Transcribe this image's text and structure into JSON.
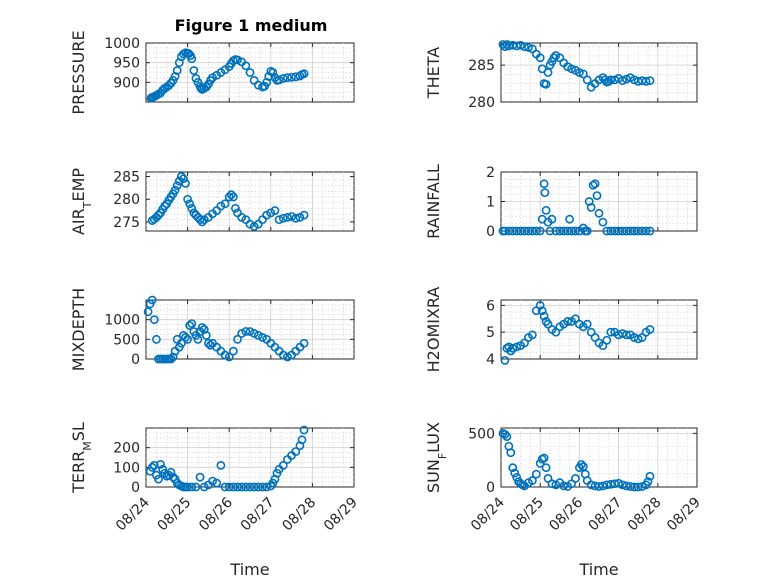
{
  "figure": {
    "title": "Figure 1 medium"
  },
  "chart_data": [
    {
      "type": "scatter",
      "id": "pressure",
      "ylabel": "PRESSURE",
      "ylim": [
        850,
        1000
      ],
      "yticks": [
        900,
        950,
        1000
      ],
      "xlabel": "",
      "xtick_labels": false,
      "marker_color": "#0072BD",
      "grid": true,
      "x": [
        0.12,
        0.15,
        0.18,
        0.22,
        0.25,
        0.3,
        0.35,
        0.4,
        0.45,
        0.5,
        0.55,
        0.6,
        0.65,
        0.7,
        0.75,
        0.8,
        0.85,
        0.9,
        0.95,
        1.0,
        1.03,
        1.07,
        1.1,
        1.15,
        1.2,
        1.25,
        1.3,
        1.32,
        1.35,
        1.4,
        1.45,
        1.5,
        1.55,
        1.6,
        1.7,
        1.8,
        1.9,
        2.0,
        2.05,
        2.1,
        2.15,
        2.2,
        2.3,
        2.4,
        2.5,
        2.6,
        2.7,
        2.8,
        2.85,
        2.9,
        2.95,
        3.0,
        3.05,
        3.1,
        3.15,
        3.2,
        3.3,
        3.4,
        3.5,
        3.6,
        3.7,
        3.75,
        3.8
      ],
      "y": [
        860,
        862,
        863,
        865,
        867,
        870,
        873,
        880,
        885,
        888,
        892,
        898,
        905,
        915,
        930,
        950,
        965,
        972,
        975,
        974,
        973,
        968,
        960,
        930,
        910,
        900,
        890,
        885,
        882,
        885,
        888,
        895,
        905,
        912,
        918,
        925,
        932,
        940,
        948,
        955,
        958,
        957,
        952,
        942,
        925,
        905,
        893,
        888,
        890,
        900,
        915,
        928,
        925,
        912,
        905,
        906,
        910,
        912,
        913,
        914,
        916,
        920,
        922
      ],
      "y_repeat": [],
      "x_repeat": []
    },
    {
      "type": "scatter",
      "id": "theta",
      "ylabel": "THETA",
      "ylim": [
        280,
        288
      ],
      "yticks": [
        280,
        285
      ],
      "xlabel": "",
      "xtick_labels": false,
      "marker_color": "#0072BD",
      "grid": true,
      "x": [
        0.05,
        0.1,
        0.15,
        0.2,
        0.3,
        0.4,
        0.5,
        0.6,
        0.7,
        0.8,
        0.9,
        1.0,
        1.05,
        1.1,
        1.15,
        1.2,
        1.25,
        1.3,
        1.35,
        1.4,
        1.5,
        1.6,
        1.7,
        1.8,
        1.9,
        2.0,
        2.1,
        2.2,
        2.3,
        2.4,
        2.5,
        2.6,
        2.65,
        2.7,
        2.75,
        2.8,
        2.9,
        3.0,
        3.1,
        3.2,
        3.3,
        3.4,
        3.5,
        3.6,
        3.7,
        3.8
      ],
      "y": [
        287.8,
        287.5,
        287.8,
        287.6,
        287.7,
        287.6,
        287.7,
        287.5,
        287.4,
        287.2,
        286.5,
        286.0,
        284.5,
        282.5,
        282.4,
        284.0,
        285.0,
        285.5,
        286.0,
        286.3,
        286.0,
        285.3,
        284.8,
        284.5,
        284.3,
        284.0,
        283.8,
        283.0,
        282.0,
        282.5,
        283.0,
        283.3,
        283.0,
        282.7,
        282.8,
        283.0,
        283.0,
        283.2,
        282.9,
        283.1,
        283.3,
        283.0,
        282.8,
        282.9,
        282.8,
        282.9
      ]
    },
    {
      "type": "scatter",
      "id": "airtemp",
      "ylabel": "AIR",
      "ylabel_sub": "T",
      "ylabel_tail": "EMP",
      "ylim": [
        273,
        286
      ],
      "yticks": [
        275,
        280,
        285
      ],
      "xlabel": "",
      "xtick_labels": false,
      "marker_color": "#0072BD",
      "grid": true,
      "x": [
        0.15,
        0.2,
        0.25,
        0.3,
        0.35,
        0.4,
        0.45,
        0.5,
        0.55,
        0.6,
        0.65,
        0.7,
        0.75,
        0.8,
        0.85,
        0.9,
        0.95,
        1.0,
        1.05,
        1.1,
        1.15,
        1.2,
        1.25,
        1.3,
        1.35,
        1.4,
        1.5,
        1.6,
        1.7,
        1.8,
        1.9,
        2.0,
        2.05,
        2.1,
        2.15,
        2.2,
        2.3,
        2.4,
        2.5,
        2.6,
        2.7,
        2.8,
        2.9,
        3.0,
        3.1,
        3.2,
        3.3,
        3.4,
        3.5,
        3.6,
        3.7,
        3.8
      ],
      "y": [
        275.3,
        275.6,
        276.0,
        276.5,
        277.0,
        277.8,
        278.5,
        279.0,
        279.8,
        280.5,
        281.2,
        282.0,
        283.0,
        284.0,
        285.0,
        284.5,
        283.5,
        280.0,
        279.0,
        278.0,
        277.0,
        276.5,
        276.0,
        275.5,
        275.0,
        275.5,
        276.0,
        276.8,
        277.5,
        278.5,
        279.0,
        280.5,
        281.0,
        280.5,
        278.0,
        277.0,
        276.0,
        275.5,
        274.5,
        274.0,
        274.5,
        275.5,
        276.5,
        277.0,
        277.5,
        275.5,
        275.8,
        276.0,
        276.2,
        275.8,
        276.0,
        276.5
      ]
    },
    {
      "type": "scatter",
      "id": "rainfall",
      "ylabel": "RAINFALL",
      "ylim": [
        0,
        2
      ],
      "yticks": [
        0,
        1,
        2
      ],
      "xlabel": "",
      "xtick_labels": false,
      "marker_color": "#0072BD",
      "grid": true,
      "x": [
        0.05,
        0.1,
        0.2,
        0.3,
        0.4,
        0.5,
        0.6,
        0.7,
        0.8,
        0.9,
        1.0,
        1.05,
        1.1,
        1.12,
        1.15,
        1.2,
        1.25,
        1.3,
        1.4,
        1.5,
        1.6,
        1.7,
        1.75,
        1.8,
        1.9,
        2.0,
        2.1,
        2.15,
        2.2,
        2.25,
        2.3,
        2.35,
        2.4,
        2.45,
        2.5,
        2.6,
        2.7,
        2.8,
        2.9,
        3.0,
        3.1,
        3.2,
        3.3,
        3.4,
        3.5,
        3.6,
        3.7,
        3.8
      ],
      "y": [
        0,
        0,
        0,
        0,
        0,
        0,
        0,
        0,
        0,
        0,
        0,
        0.4,
        1.6,
        1.3,
        0.7,
        0.3,
        0,
        0.4,
        0,
        0,
        0,
        0,
        0.4,
        0,
        0,
        0,
        0.1,
        0,
        0,
        1.0,
        0.8,
        1.55,
        1.6,
        1.2,
        0.6,
        0.3,
        0,
        0,
        0,
        0,
        0,
        0,
        0,
        0,
        0,
        0,
        0,
        0
      ]
    },
    {
      "type": "scatter",
      "id": "mixdepth",
      "ylabel": "MIXDEPTH",
      "ylim": [
        0,
        1500
      ],
      "yticks": [
        0,
        500,
        1000
      ],
      "xlabel": "",
      "xtick_labels": false,
      "marker_color": "#0072BD",
      "grid": true,
      "x": [
        0.05,
        0.1,
        0.15,
        0.2,
        0.25,
        0.3,
        0.35,
        0.4,
        0.45,
        0.5,
        0.55,
        0.6,
        0.65,
        0.7,
        0.75,
        0.8,
        0.85,
        0.9,
        0.95,
        1.0,
        1.05,
        1.1,
        1.15,
        1.2,
        1.25,
        1.3,
        1.35,
        1.4,
        1.45,
        1.5,
        1.55,
        1.6,
        1.7,
        1.8,
        1.9,
        2.0,
        2.1,
        2.2,
        2.3,
        2.4,
        2.5,
        2.6,
        2.7,
        2.8,
        2.9,
        3.0,
        3.1,
        3.2,
        3.3,
        3.4,
        3.5,
        3.6,
        3.7,
        3.8
      ],
      "y": [
        1200,
        1400,
        1500,
        1000,
        500,
        0,
        0,
        0,
        0,
        0,
        0,
        0,
        50,
        200,
        500,
        300,
        400,
        600,
        550,
        500,
        850,
        900,
        700,
        600,
        500,
        700,
        800,
        750,
        600,
        400,
        350,
        400,
        300,
        200,
        100,
        50,
        200,
        500,
        650,
        700,
        700,
        650,
        600,
        550,
        500,
        400,
        300,
        200,
        100,
        50,
        100,
        200,
        300,
        400
      ]
    },
    {
      "type": "scatter",
      "id": "h2omixra",
      "ylabel": "H2OMIXRA",
      "ylim": [
        4,
        6.2
      ],
      "yticks": [
        4,
        5,
        6
      ],
      "xlabel": "",
      "xtick_labels": false,
      "marker_color": "#0072BD",
      "grid": true,
      "x": [
        0.1,
        0.15,
        0.2,
        0.25,
        0.3,
        0.4,
        0.5,
        0.6,
        0.7,
        0.8,
        0.9,
        1.0,
        1.05,
        1.1,
        1.15,
        1.2,
        1.3,
        1.4,
        1.5,
        1.6,
        1.7,
        1.8,
        1.9,
        2.0,
        2.1,
        2.2,
        2.3,
        2.4,
        2.5,
        2.6,
        2.7,
        2.8,
        2.9,
        3.0,
        3.1,
        3.2,
        3.3,
        3.4,
        3.5,
        3.6,
        3.7,
        3.8
      ],
      "y": [
        3.95,
        4.4,
        4.45,
        4.3,
        4.4,
        4.45,
        4.5,
        4.6,
        4.8,
        4.9,
        5.8,
        6.0,
        5.8,
        5.6,
        5.4,
        5.3,
        5.1,
        5.0,
        5.2,
        5.3,
        5.4,
        5.4,
        5.5,
        5.3,
        5.2,
        5.3,
        5.0,
        4.8,
        4.6,
        4.5,
        4.7,
        5.0,
        5.0,
        4.9,
        4.95,
        4.9,
        4.9,
        4.8,
        4.75,
        4.8,
        5.0,
        5.1
      ]
    },
    {
      "type": "scatter",
      "id": "terrmsl",
      "ylabel": "TERR",
      "ylabel_sub": "M",
      "ylabel_tail": "SL",
      "ylim": [
        0,
        300
      ],
      "yticks": [
        0,
        100,
        200
      ],
      "xlabel": "Time",
      "xtick_labels": true,
      "marker_color": "#0072BD",
      "grid": true,
      "x": [
        0.1,
        0.15,
        0.2,
        0.25,
        0.3,
        0.35,
        0.4,
        0.45,
        0.5,
        0.55,
        0.6,
        0.65,
        0.7,
        0.75,
        0.8,
        0.85,
        0.9,
        0.95,
        1.0,
        1.1,
        1.2,
        1.3,
        1.4,
        1.5,
        1.6,
        1.7,
        1.8,
        1.9,
        2.0,
        2.1,
        2.2,
        2.3,
        2.4,
        2.5,
        2.6,
        2.7,
        2.8,
        2.9,
        3.0,
        3.05,
        3.1,
        3.15,
        3.2,
        3.3,
        3.4,
        3.5,
        3.6,
        3.7,
        3.75,
        3.8
      ],
      "y": [
        80,
        100,
        110,
        60,
        40,
        115,
        90,
        70,
        55,
        60,
        75,
        50,
        40,
        20,
        10,
        5,
        0,
        0,
        0,
        0,
        0,
        50,
        0,
        10,
        30,
        20,
        110,
        0,
        0,
        0,
        0,
        0,
        0,
        0,
        0,
        0,
        0,
        0,
        5,
        20,
        40,
        70,
        90,
        110,
        140,
        160,
        180,
        210,
        240,
        290
      ]
    },
    {
      "type": "scatter",
      "id": "sunflux",
      "ylabel": "SUN",
      "ylabel_sub": "F",
      "ylabel_tail": "LUX",
      "ylim": [
        0,
        550
      ],
      "yticks": [
        0,
        500
      ],
      "xlabel": "Time",
      "xtick_labels": true,
      "marker_color": "#0072BD",
      "grid": true,
      "x": [
        0.05,
        0.1,
        0.15,
        0.2,
        0.25,
        0.3,
        0.35,
        0.4,
        0.45,
        0.5,
        0.55,
        0.6,
        0.7,
        0.8,
        0.9,
        1.0,
        1.05,
        1.1,
        1.15,
        1.2,
        1.3,
        1.4,
        1.5,
        1.6,
        1.7,
        1.8,
        1.9,
        2.0,
        2.05,
        2.1,
        2.15,
        2.2,
        2.3,
        2.4,
        2.5,
        2.6,
        2.7,
        2.8,
        2.9,
        3.0,
        3.1,
        3.2,
        3.3,
        3.4,
        3.5,
        3.6,
        3.7,
        3.75,
        3.8
      ],
      "y": [
        500,
        490,
        470,
        380,
        320,
        180,
        130,
        90,
        50,
        30,
        20,
        10,
        40,
        60,
        120,
        220,
        260,
        270,
        180,
        80,
        30,
        20,
        40,
        10,
        5,
        30,
        80,
        180,
        210,
        190,
        120,
        60,
        20,
        10,
        5,
        10,
        20,
        25,
        30,
        35,
        20,
        10,
        5,
        0,
        0,
        5,
        20,
        50,
        100
      ]
    }
  ],
  "xaxis": {
    "tick_labels": [
      "08/24",
      "08/25",
      "08/26",
      "08/27",
      "08/28",
      "08/29"
    ]
  }
}
